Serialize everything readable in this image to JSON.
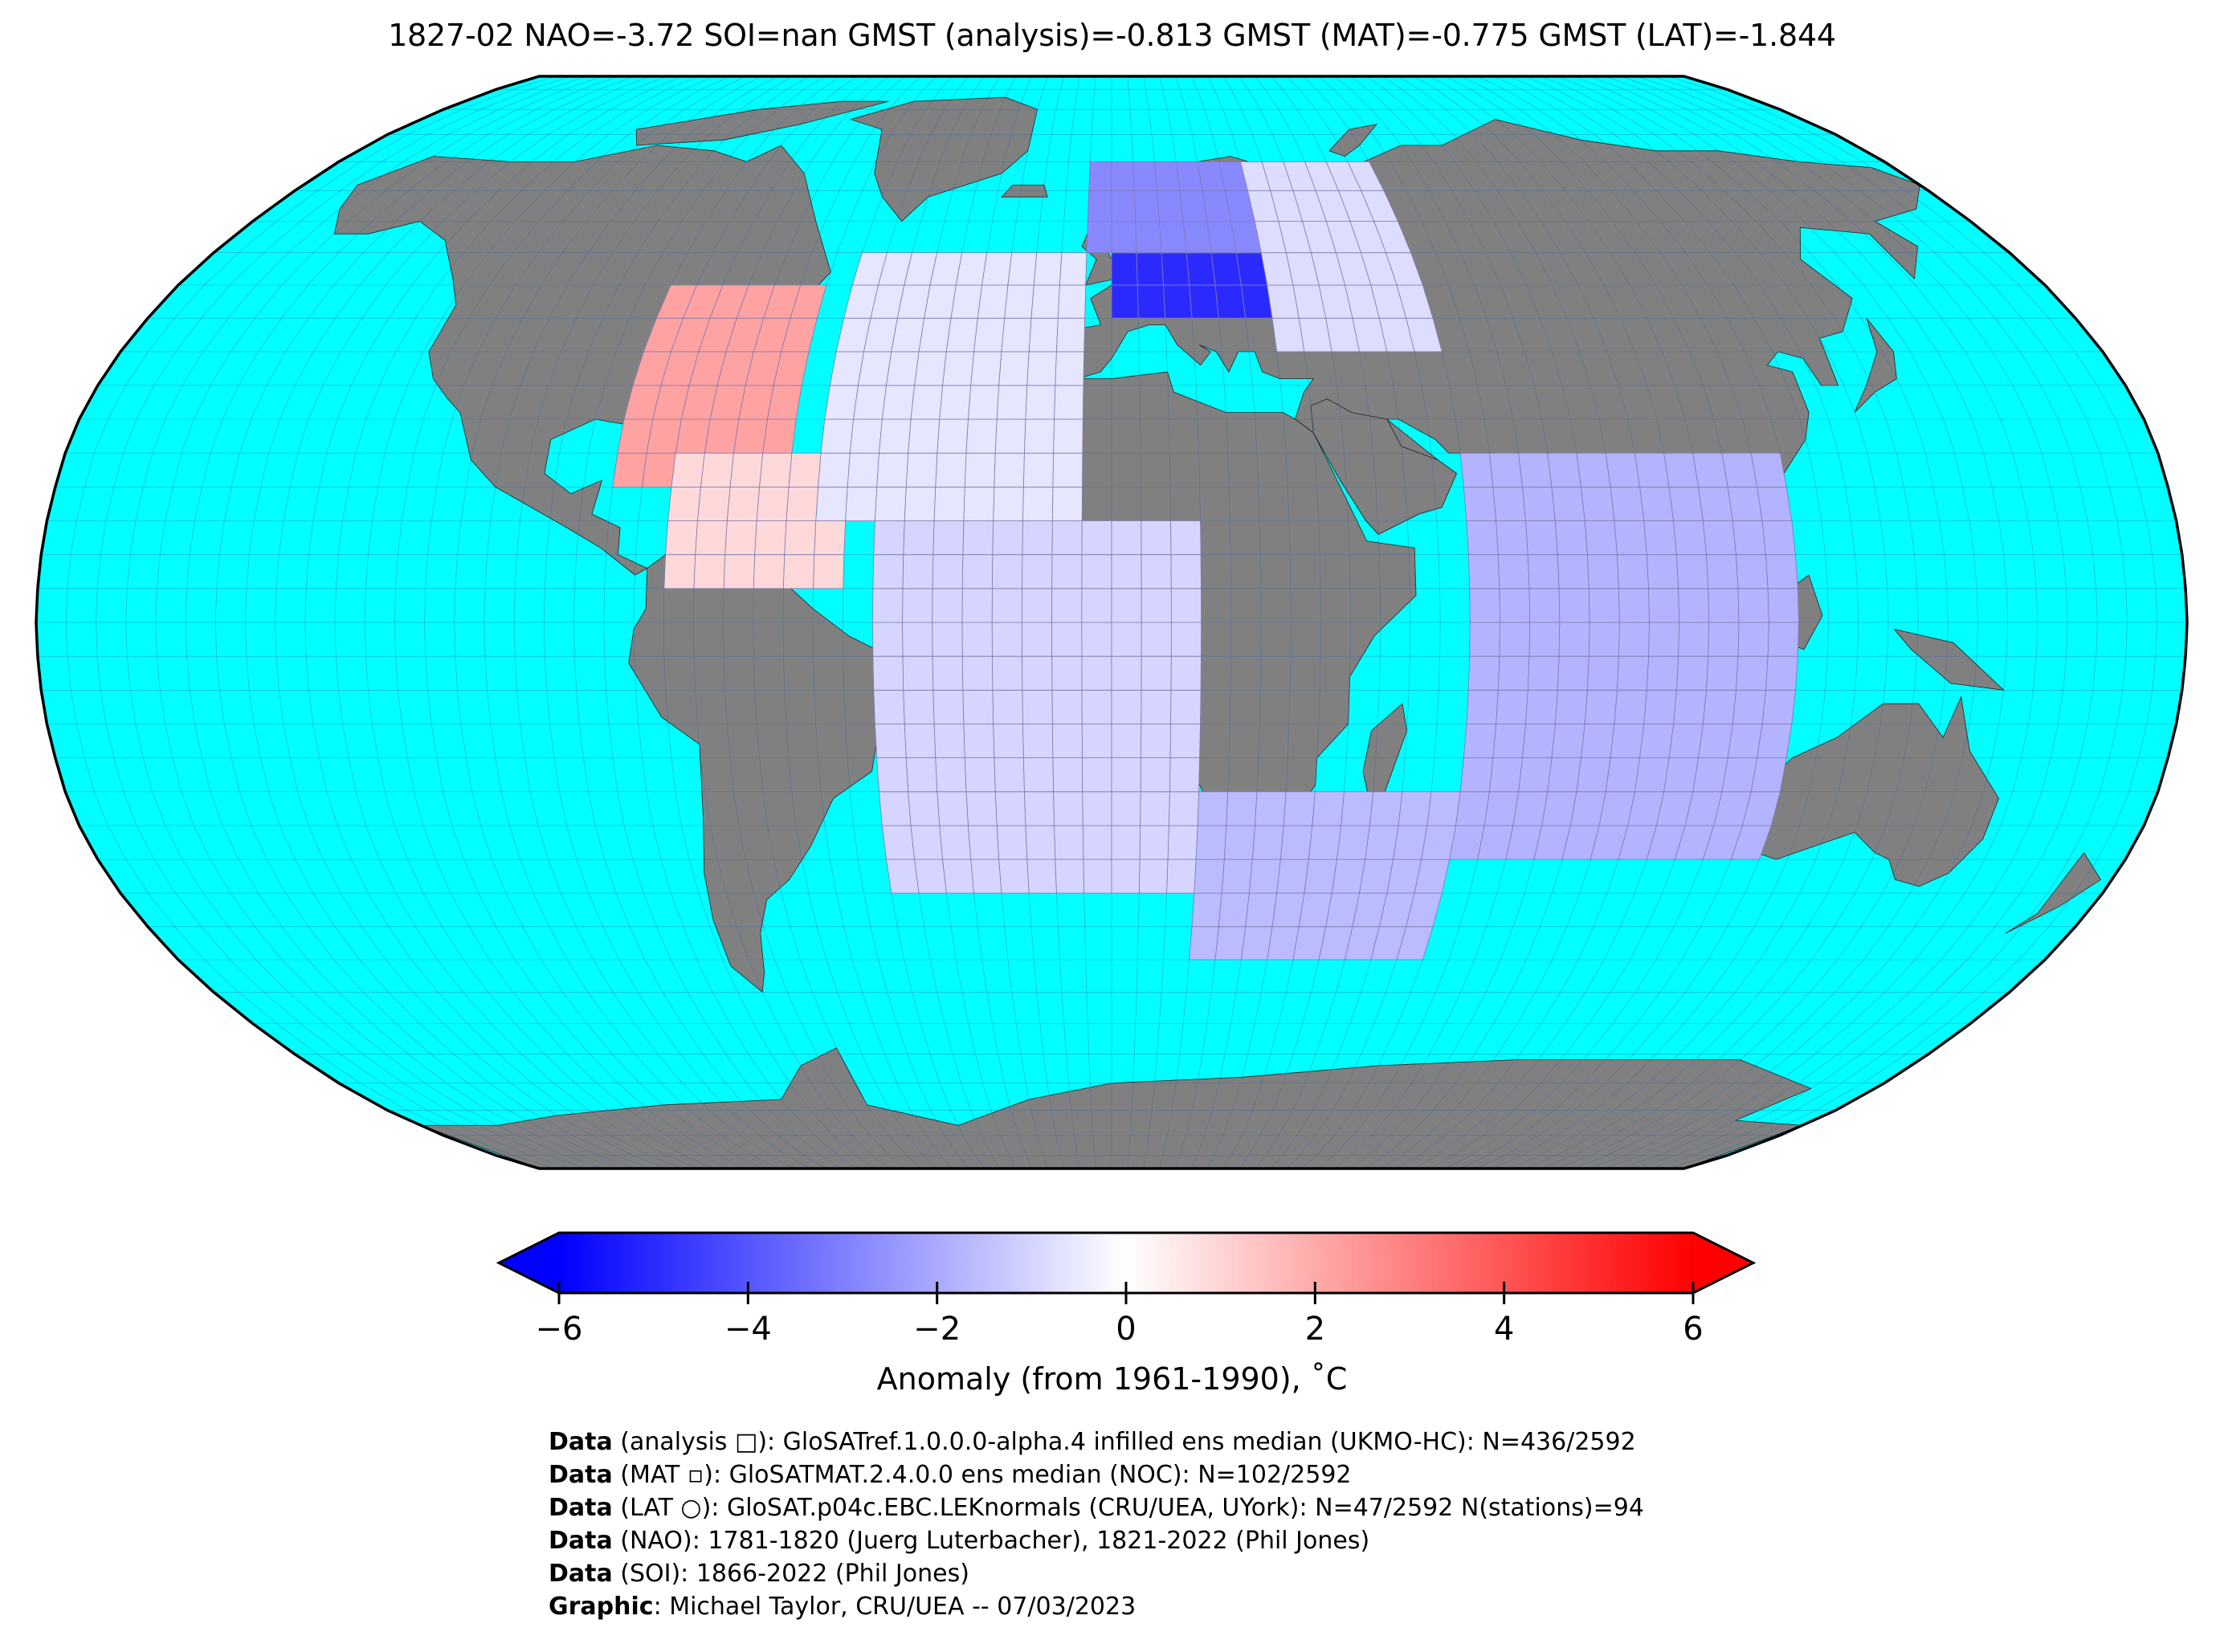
{
  "title": "1827-02 NAO=-3.72 SOI=nan GMST (analysis)=-0.813 GMST (MAT)=-0.775 GMST (LAT)=-1.844",
  "colors": {
    "ocean": "#00ffff",
    "land": "#808080",
    "grid": "#3366aa",
    "outline": "#000000",
    "cell_grid": "#b08ab8"
  },
  "colorbar": {
    "min": -6,
    "max": 6,
    "ticks": [
      -6,
      -4,
      -2,
      0,
      2,
      4,
      6
    ],
    "tick_labels": [
      "−6",
      "−4",
      "−2",
      "0",
      "2",
      "4",
      "6"
    ],
    "label": "Anomaly (from 1961-1990), ˚C",
    "colormap": [
      "#0000ff",
      "#ffffff",
      "#ff0000"
    ],
    "extend": "both"
  },
  "credits": [
    {
      "key": "Data",
      "rest": " (analysis □): GloSATref.1.0.0.0-alpha.4 infilled ens median (UKMO-HC): N=436/2592"
    },
    {
      "key": "Data",
      "rest": " (MAT ▫): GloSATMAT.2.4.0.0 ens median (NOC): N=102/2592"
    },
    {
      "key": "Data",
      "rest": " (LAT ○): GloSAT.p04c.EBC.LEKnormals (CRU/UEA, UYork): N=47/2592 N(stations)=94"
    },
    {
      "key": "Data",
      "rest": " (NAO): 1781-1820 (Juerg Luterbacher), 1821-2022 (Phil Jones)"
    },
    {
      "key": "Data",
      "rest": " (SOI): 1866-2022 (Phil Jones)"
    },
    {
      "key": "Graphic",
      "rest": ": Michael Taylor, CRU/UEA -- 07/03/2023"
    }
  ],
  "map": {
    "projection": "Robinson",
    "grid_spacing_deg": 5,
    "anomaly_regions": [
      {
        "name": "North America east coast",
        "lon": [
          -85,
          -55
        ],
        "lat": [
          20,
          48
        ],
        "anomaly": 2.2
      },
      {
        "name": "Caribbean",
        "lon": [
          -75,
          -45
        ],
        "lat": [
          5,
          25
        ],
        "anomaly": 0.9
      },
      {
        "name": "Northern Europe",
        "lon": [
          0,
          30
        ],
        "lat": [
          45,
          60
        ],
        "anomaly": -5.0
      },
      {
        "name": "Scandinavia and Baltic",
        "lon": [
          -5,
          40
        ],
        "lat": [
          55,
          70
        ],
        "anomaly": -2.8
      },
      {
        "name": "Eastern Europe",
        "lon": [
          30,
          60
        ],
        "lat": [
          40,
          70
        ],
        "anomaly": -0.8
      },
      {
        "name": "North Atlantic",
        "lon": [
          -50,
          -5
        ],
        "lat": [
          15,
          55
        ],
        "anomaly": -0.6
      },
      {
        "name": "Tropical and South Atlantic",
        "lon": [
          -40,
          15
        ],
        "lat": [
          -40,
          15
        ],
        "anomaly": -1.0
      },
      {
        "name": "Southern Africa and Southwest Indian Ocean",
        "lon": [
          15,
          60
        ],
        "lat": [
          -50,
          -25
        ],
        "anomaly": -1.6
      },
      {
        "name": "Indian Ocean",
        "lon": [
          60,
          115
        ],
        "lat": [
          -35,
          25
        ],
        "anomaly": -1.8
      }
    ]
  }
}
